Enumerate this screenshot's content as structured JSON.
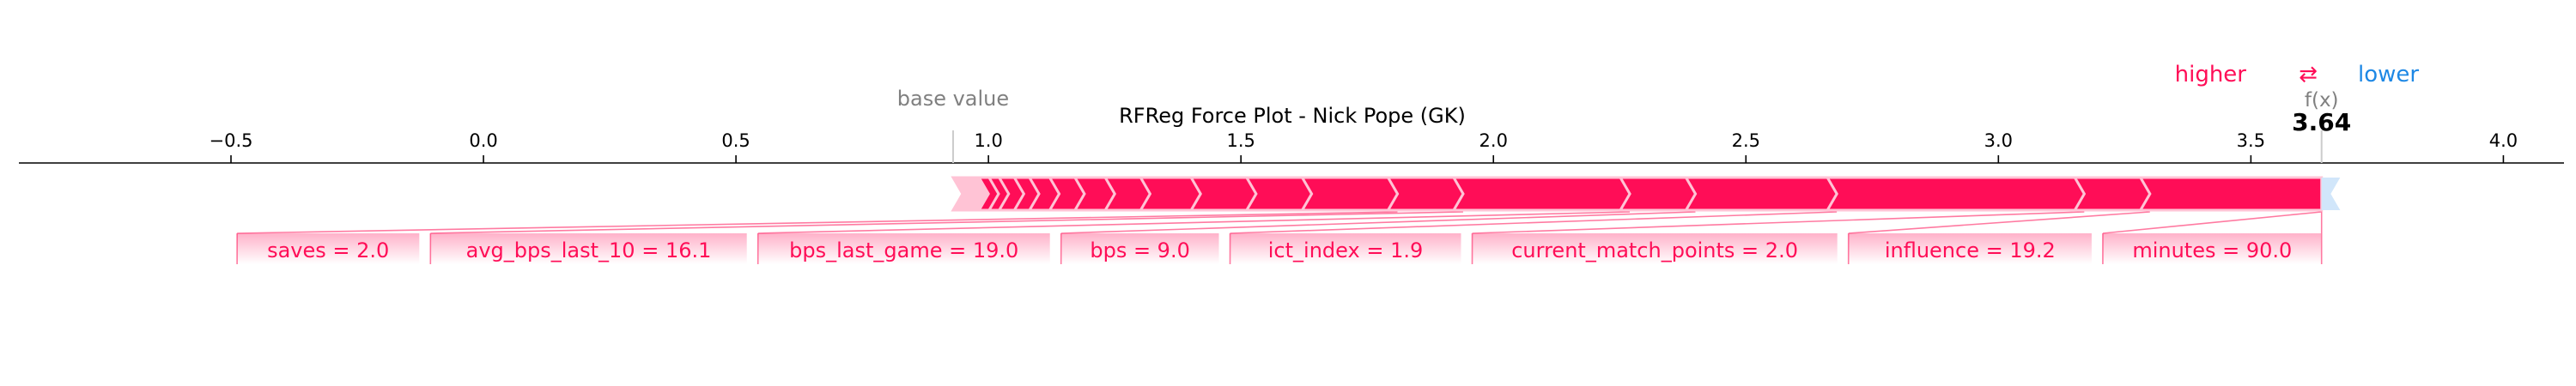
{
  "chart_data": {
    "type": "force",
    "title": "RFReg Force Plot - Nick Pope (GK)",
    "xlim": [
      -0.92,
      4.12
    ],
    "ticks": [
      {
        "value": -0.5,
        "label": "−0.5"
      },
      {
        "value": 0.0,
        "label": "0.0"
      },
      {
        "value": 0.5,
        "label": "0.5"
      },
      {
        "value": 1.0,
        "label": "1.0"
      },
      {
        "value": 1.5,
        "label": "1.5"
      },
      {
        "value": 2.0,
        "label": "2.0"
      },
      {
        "value": 2.5,
        "label": "2.5"
      },
      {
        "value": 3.0,
        "label": "3.0"
      },
      {
        "value": 3.5,
        "label": "3.5"
      },
      {
        "value": 4.0,
        "label": "4.0"
      }
    ],
    "base_value": 0.93,
    "base_value_label": "base value",
    "output_value": 3.64,
    "output_value_text": "3.64",
    "output_label": "f(x)",
    "legend": {
      "higher": "higher",
      "arrow": "⇄",
      "lower": "lower"
    },
    "colors": {
      "positive": "#ff0d57",
      "negative": "#1e88e5",
      "positive_light": "#ffc3d5",
      "negative_light": "#d1e6fa"
    },
    "features": [
      {
        "label": "minutes = 90.0",
        "start": 3.3,
        "end": 3.64
      },
      {
        "label": "influence = 19.2",
        "start": 3.17,
        "end": 3.3
      },
      {
        "label": "current_match_points = 2.0",
        "start": 2.68,
        "end": 3.17
      },
      {
        "label": "ict_index = 1.9",
        "start": 2.4,
        "end": 2.68
      },
      {
        "label": "bps = 9.0",
        "start": 2.27,
        "end": 2.4
      },
      {
        "label": "bps_last_game = 19.0",
        "start": 1.94,
        "end": 2.27
      },
      {
        "label": "avg_bps_last_10 = 16.1",
        "start": 1.81,
        "end": 1.94
      },
      {
        "label": "saves = 2.0",
        "start": 1.64,
        "end": 1.81
      },
      {
        "label": "",
        "start": 1.53,
        "end": 1.64
      },
      {
        "label": "",
        "start": 1.42,
        "end": 1.53
      },
      {
        "label": "",
        "start": 1.32,
        "end": 1.42
      },
      {
        "label": "",
        "start": 1.25,
        "end": 1.32
      },
      {
        "label": "",
        "start": 1.19,
        "end": 1.25
      },
      {
        "label": "",
        "start": 1.14,
        "end": 1.19
      },
      {
        "label": "",
        "start": 1.1,
        "end": 1.14
      },
      {
        "label": "",
        "start": 1.07,
        "end": 1.1
      },
      {
        "label": "",
        "start": 1.04,
        "end": 1.07
      },
      {
        "label": "",
        "start": 1.02,
        "end": 1.04
      },
      {
        "label": "",
        "start": 1.0,
        "end": 1.02
      },
      {
        "label": "",
        "start": 0.93,
        "end": 1.0
      }
    ],
    "negative_features": [
      {
        "label": "",
        "start": 3.64,
        "end": 3.67
      }
    ]
  }
}
